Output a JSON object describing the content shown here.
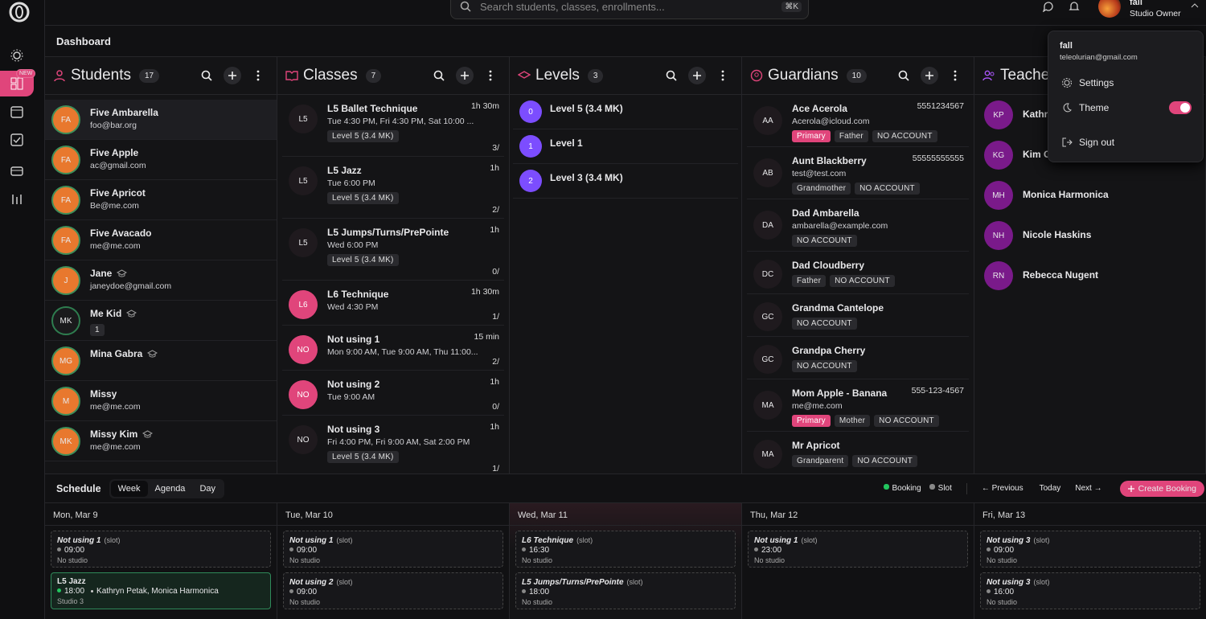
{
  "topbar": {
    "search_placeholder": "Search students, classes, enrollments...",
    "shortcut": "⌘K",
    "user_name": "fall",
    "user_role": "Studio Owner"
  },
  "sidebar": {
    "new_badge": "NEW"
  },
  "page_title": "Dashboard",
  "students": {
    "title": "Students",
    "count": 17,
    "items": [
      {
        "initials": "FA",
        "name": "Five Ambarella",
        "email": "foo@bar.org"
      },
      {
        "initials": "FA",
        "name": "Five Apple",
        "email": "ac@gmail.com"
      },
      {
        "initials": "FA",
        "name": "Five Apricot",
        "email": "Be@me.com"
      },
      {
        "initials": "FA",
        "name": "Five Avacado",
        "email": "me@me.com"
      },
      {
        "initials": "J",
        "name": "Jane",
        "email": "janeydoe@gmail.com",
        "graduated": true
      },
      {
        "initials": "MK",
        "name": "Me Kid",
        "badge": 1,
        "graduated": true
      },
      {
        "initials": "MG",
        "name": "Mina Gabra",
        "graduated": true
      },
      {
        "initials": "M",
        "name": "Missy",
        "email": "me@me.com"
      },
      {
        "initials": "MK",
        "name": "Missy Kim",
        "email": "me@me.com",
        "graduated": true
      }
    ]
  },
  "classes": {
    "title": "Classes",
    "count": 7,
    "items": [
      {
        "abbr": "L5",
        "name": "L5 Ballet Technique",
        "duration": "1h 30m",
        "schedule": "Tue 4:30 PM, Fri 4:30 PM, Sat 10:00 ...",
        "level": "Level 5 (3.4 MK)",
        "enrolled": "3/"
      },
      {
        "abbr": "L5",
        "name": "L5 Jazz",
        "duration": "1h",
        "schedule": "Tue 6:00 PM",
        "level": "Level 5 (3.4 MK)",
        "enrolled": "2/"
      },
      {
        "abbr": "L5",
        "name": "L5 Jumps/Turns/PrePointe",
        "duration": "1h",
        "schedule": "Wed 6:00 PM",
        "level": "Level 5 (3.4 MK)",
        "enrolled": "0/"
      },
      {
        "abbr": "L6",
        "name": "L6 Technique",
        "duration": "1h 30m",
        "schedule": "Wed 4:30 PM",
        "enrolled": "1/",
        "highlight": true
      },
      {
        "abbr": "NO",
        "name": "Not using 1",
        "duration": "15 min",
        "schedule": "Mon 9:00 AM, Tue 9:00 AM, Thu 11:00...",
        "enrolled": "2/",
        "highlight": true
      },
      {
        "abbr": "NO",
        "name": "Not using 2",
        "duration": "1h",
        "schedule": "Tue 9:00 AM",
        "enrolled": "0/",
        "highlight": true
      },
      {
        "abbr": "NO",
        "name": "Not using 3",
        "duration": "1h",
        "schedule": "Fri 4:00 PM, Fri 9:00 AM, Sat 2:00 PM",
        "level": "Level 5 (3.4 MK)",
        "enrolled": "1/"
      }
    ]
  },
  "levels": {
    "title": "Levels",
    "count": 3,
    "items": [
      {
        "order": 0,
        "name": "Level 5 (3.4 MK)"
      },
      {
        "order": 1,
        "name": "Level 1"
      },
      {
        "order": 2,
        "name": "Level 3 (3.4 MK)"
      }
    ]
  },
  "guardians": {
    "title": "Guardians",
    "count": 10,
    "items": [
      {
        "initials": "AA",
        "name": "Ace Acerola",
        "email": "Acerola@icloud.com",
        "phone": "5551234567",
        "tags": [
          "Primary",
          "Father",
          "NO ACCOUNT"
        ]
      },
      {
        "initials": "AB",
        "name": "Aunt Blackberry",
        "email": "test@test.com",
        "phone": "55555555555",
        "tags": [
          "Grandmother",
          "NO ACCOUNT"
        ]
      },
      {
        "initials": "DA",
        "name": "Dad Ambarella",
        "email": "ambarella@example.com",
        "tags": [
          "NO ACCOUNT"
        ]
      },
      {
        "initials": "DC",
        "name": "Dad Cloudberry",
        "tags": [
          "Father",
          "NO ACCOUNT"
        ]
      },
      {
        "initials": "GC",
        "name": "Grandma Cantelope",
        "tags": [
          "NO ACCOUNT"
        ]
      },
      {
        "initials": "GC",
        "name": "Grandpa Cherry",
        "tags": [
          "NO ACCOUNT"
        ]
      },
      {
        "initials": "MA",
        "name": "Mom Apple - Banana",
        "email": "me@me.com",
        "phone": "555-123-4567",
        "tags": [
          "Primary",
          "Mother",
          "NO ACCOUNT"
        ]
      },
      {
        "initials": "MA",
        "name": "Mr Apricot",
        "tags": [
          "Grandparent",
          "NO ACCOUNT"
        ]
      }
    ]
  },
  "teachers": {
    "title": "Teachers",
    "items": [
      {
        "initials": "KP",
        "name": "Kathryn Petak"
      },
      {
        "initials": "KG",
        "name": "Kim G"
      },
      {
        "initials": "MH",
        "name": "Monica Harmonica"
      },
      {
        "initials": "NH",
        "name": "Nicole Haskins"
      },
      {
        "initials": "RN",
        "name": "Rebecca Nugent"
      }
    ]
  },
  "schedule": {
    "title": "Schedule",
    "views": [
      "Week",
      "Agenda",
      "Day"
    ],
    "active_view": "Week",
    "legend": [
      "Booking",
      "Slot"
    ],
    "previous": "← Previous",
    "today": "Today",
    "next": "Next →",
    "create": "Create Booking",
    "days": [
      {
        "label": "Mon, Mar 9",
        "events": [
          {
            "title": "Not using 1",
            "kind": "(slot)",
            "time": "09:00",
            "location": "No studio"
          },
          {
            "title": "L5 Jazz",
            "time": "18:00",
            "people": "Kathryn Petak, Monica Harmonica",
            "location": "Studio 3",
            "booking": true
          }
        ]
      },
      {
        "label": "Tue, Mar 10",
        "events": [
          {
            "title": "Not using 1",
            "kind": "(slot)",
            "time": "09:00",
            "location": "No studio"
          },
          {
            "title": "Not using 2",
            "kind": "(slot)",
            "time": "09:00",
            "location": "No studio"
          }
        ]
      },
      {
        "label": "Wed, Mar 11",
        "events": [
          {
            "title": "L6 Technique",
            "kind": "(slot)",
            "time": "16:30",
            "location": "No studio"
          },
          {
            "title": "L5 Jumps/Turns/PrePointe",
            "kind": "(slot)",
            "time": "18:00",
            "location": "No studio"
          }
        ]
      },
      {
        "label": "Thu, Mar 12",
        "events": [
          {
            "title": "Not using 1",
            "kind": "(slot)",
            "time": "23:00",
            "location": "No studio"
          }
        ]
      },
      {
        "label": "Fri, Mar 13",
        "events": [
          {
            "title": "Not using 3",
            "kind": "(slot)",
            "time": "09:00",
            "location": "No studio"
          },
          {
            "title": "Not using 3",
            "kind": "(slot)",
            "time": "16:00",
            "location": "No studio"
          }
        ]
      }
    ]
  },
  "user_menu": {
    "name": "fall",
    "email": "teleolurian@gmail.com",
    "items": [
      "Settings",
      "Theme",
      "Sign out"
    ]
  }
}
